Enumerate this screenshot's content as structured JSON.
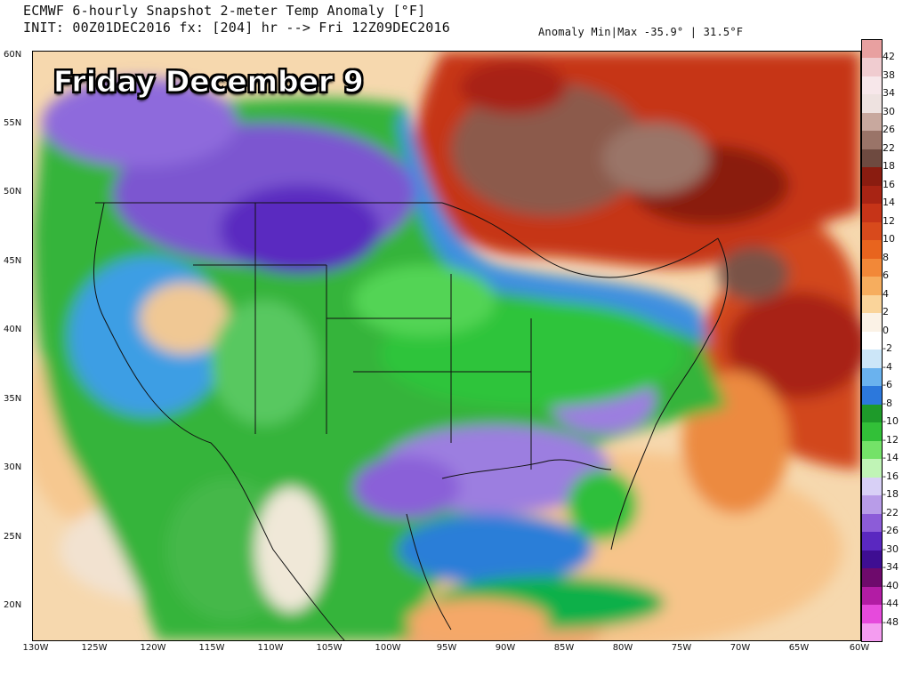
{
  "header": {
    "line1": "ECMWF 6-hourly Snapshot 2-meter Temp Anomaly [°F]",
    "line2": "INIT: 00Z01DEC2016 fx: [204] hr --> Fri 12Z09DEC2016",
    "minmax": "Anomaly Min|Max -35.9° | 31.5°F"
  },
  "overlay_title": "Friday December 9",
  "lat_labels": [
    "60N",
    "55N",
    "50N",
    "45N",
    "40N",
    "35N",
    "30N",
    "25N",
    "20N"
  ],
  "lon_labels": [
    "130W",
    "125W",
    "120W",
    "115W",
    "110W",
    "105W",
    "100W",
    "95W",
    "90W",
    "85W",
    "80W",
    "75W",
    "70W",
    "65W",
    "60W"
  ],
  "colorbar": {
    "labels": [
      "42",
      "38",
      "34",
      "30",
      "26",
      "22",
      "18",
      "16",
      "14",
      "12",
      "10",
      "8",
      "6",
      "4",
      "2",
      "0",
      "-2",
      "-4",
      "-6",
      "-8",
      "-10",
      "-12",
      "-14",
      "-16",
      "-18",
      "-22",
      "-26",
      "-30",
      "-34",
      "-40",
      "-44",
      "-48"
    ],
    "colors": [
      "#e8a0a0",
      "#f0ccd0",
      "#f7e7ea",
      "#eee2e0",
      "#c8a89e",
      "#9a7468",
      "#6e4a40",
      "#8a1c10",
      "#a82414",
      "#c63418",
      "#d84a1c",
      "#e8641e",
      "#f28838",
      "#f6ad5e",
      "#fad49a",
      "#fbf2e6",
      "#ffffff",
      "#cce6f8",
      "#6ab2ee",
      "#2c78dc",
      "#1e9a2a",
      "#32c038",
      "#74e268",
      "#c0f4b6",
      "#d8d0f6",
      "#b89ce8",
      "#8c5cd8",
      "#5a28c0",
      "#3e0e92",
      "#6e0a6c",
      "#b21ca4",
      "#e64adc",
      "#f49cf0"
    ]
  }
}
